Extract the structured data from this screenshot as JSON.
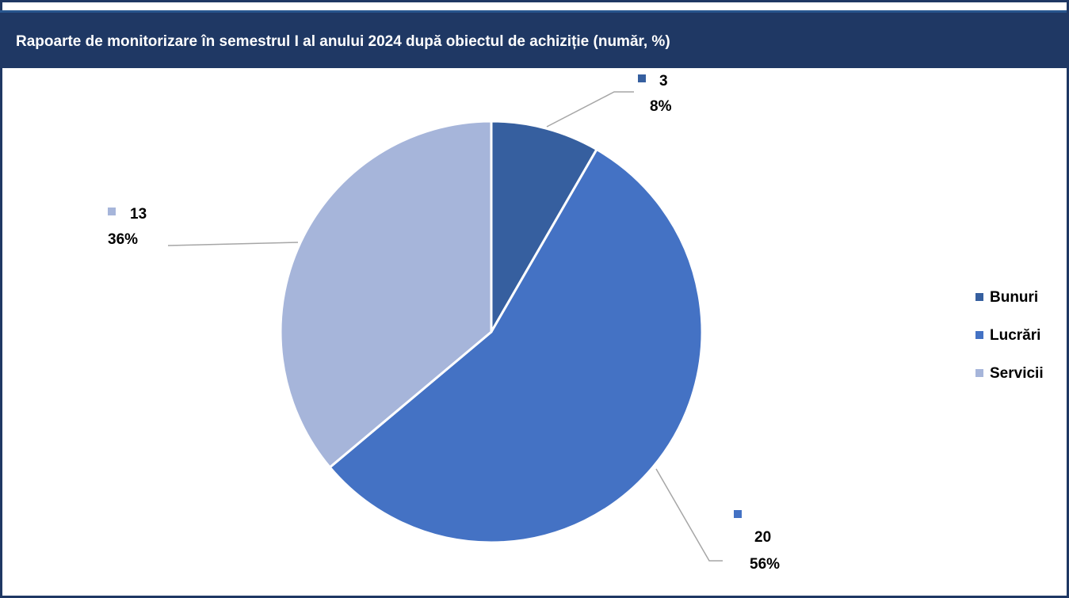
{
  "chart_data": {
    "type": "pie",
    "title": "Rapoarte de monitorizare în semestrul I al anului 2024 după obiectul de achiziție (număr, %)",
    "categories": [
      "Bunuri",
      "Lucrări",
      "Servicii"
    ],
    "values": [
      3,
      20,
      13
    ],
    "percent_labels": [
      "8%",
      "56%",
      "36%"
    ],
    "colors": [
      "#365f9f",
      "#4472c4",
      "#a6b5da"
    ],
    "legend_position": "right"
  }
}
